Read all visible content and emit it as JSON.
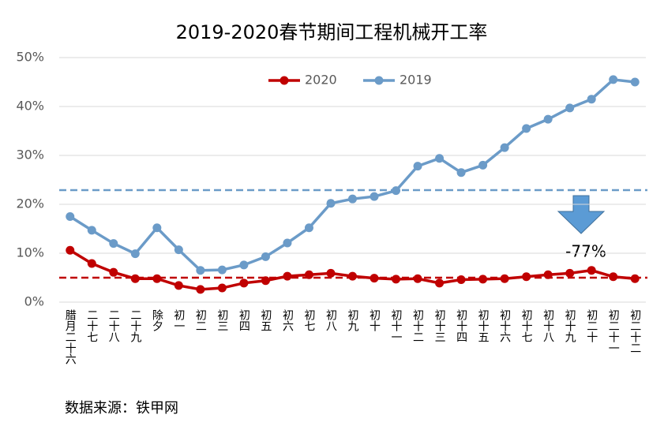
{
  "chart_data": {
    "type": "line",
    "title": "2019-2020春节期间工程机械开工率",
    "categories": [
      "腊月二十六",
      "二十七",
      "二十八",
      "二十九",
      "除夕",
      "初一",
      "初二",
      "初三",
      "初四",
      "初五",
      "初六",
      "初七",
      "初八",
      "初九",
      "初十",
      "初十一",
      "初十二",
      "初十三",
      "初十四",
      "初十五",
      "初十六",
      "初十七",
      "初十八",
      "初十九",
      "初二十",
      "初二十一",
      "初二十二"
    ],
    "series": [
      {
        "name": "2020",
        "color": "#c00000",
        "values": [
          10.6,
          7.9,
          6.1,
          4.8,
          4.8,
          3.4,
          2.6,
          2.9,
          3.9,
          4.4,
          5.3,
          5.6,
          5.9,
          5.3,
          4.9,
          4.7,
          4.8,
          3.9,
          4.6,
          4.7,
          4.8,
          5.2,
          5.6,
          5.9,
          6.5,
          5.2,
          4.8
        ]
      },
      {
        "name": "2019",
        "color": "#6b9bc8",
        "values": [
          17.5,
          14.7,
          12,
          9.9,
          15.2,
          10.7,
          6.5,
          6.6,
          7.6,
          9.3,
          12.1,
          15.2,
          20.2,
          21.1,
          21.6,
          22.8,
          27.8,
          29.4,
          26.5,
          28,
          31.6,
          35.5,
          37.4,
          39.7,
          41.5,
          45.5,
          45
        ]
      }
    ],
    "reference_lines": [
      {
        "value": 22.9,
        "color": "#6b9bc8"
      },
      {
        "value": 5,
        "color": "#c00000"
      }
    ],
    "annotation": "-77%",
    "source": "数据来源：铁甲网",
    "ylim": [
      0,
      50
    ],
    "yticks": [
      {
        "value": 0,
        "label": "0%"
      },
      {
        "value": 10,
        "label": "10%"
      },
      {
        "value": 20,
        "label": "20%"
      },
      {
        "value": 30,
        "label": "30%"
      },
      {
        "value": 40,
        "label": "40%"
      },
      {
        "value": 50,
        "label": "50%"
      }
    ],
    "grid": true,
    "legend": "top"
  }
}
